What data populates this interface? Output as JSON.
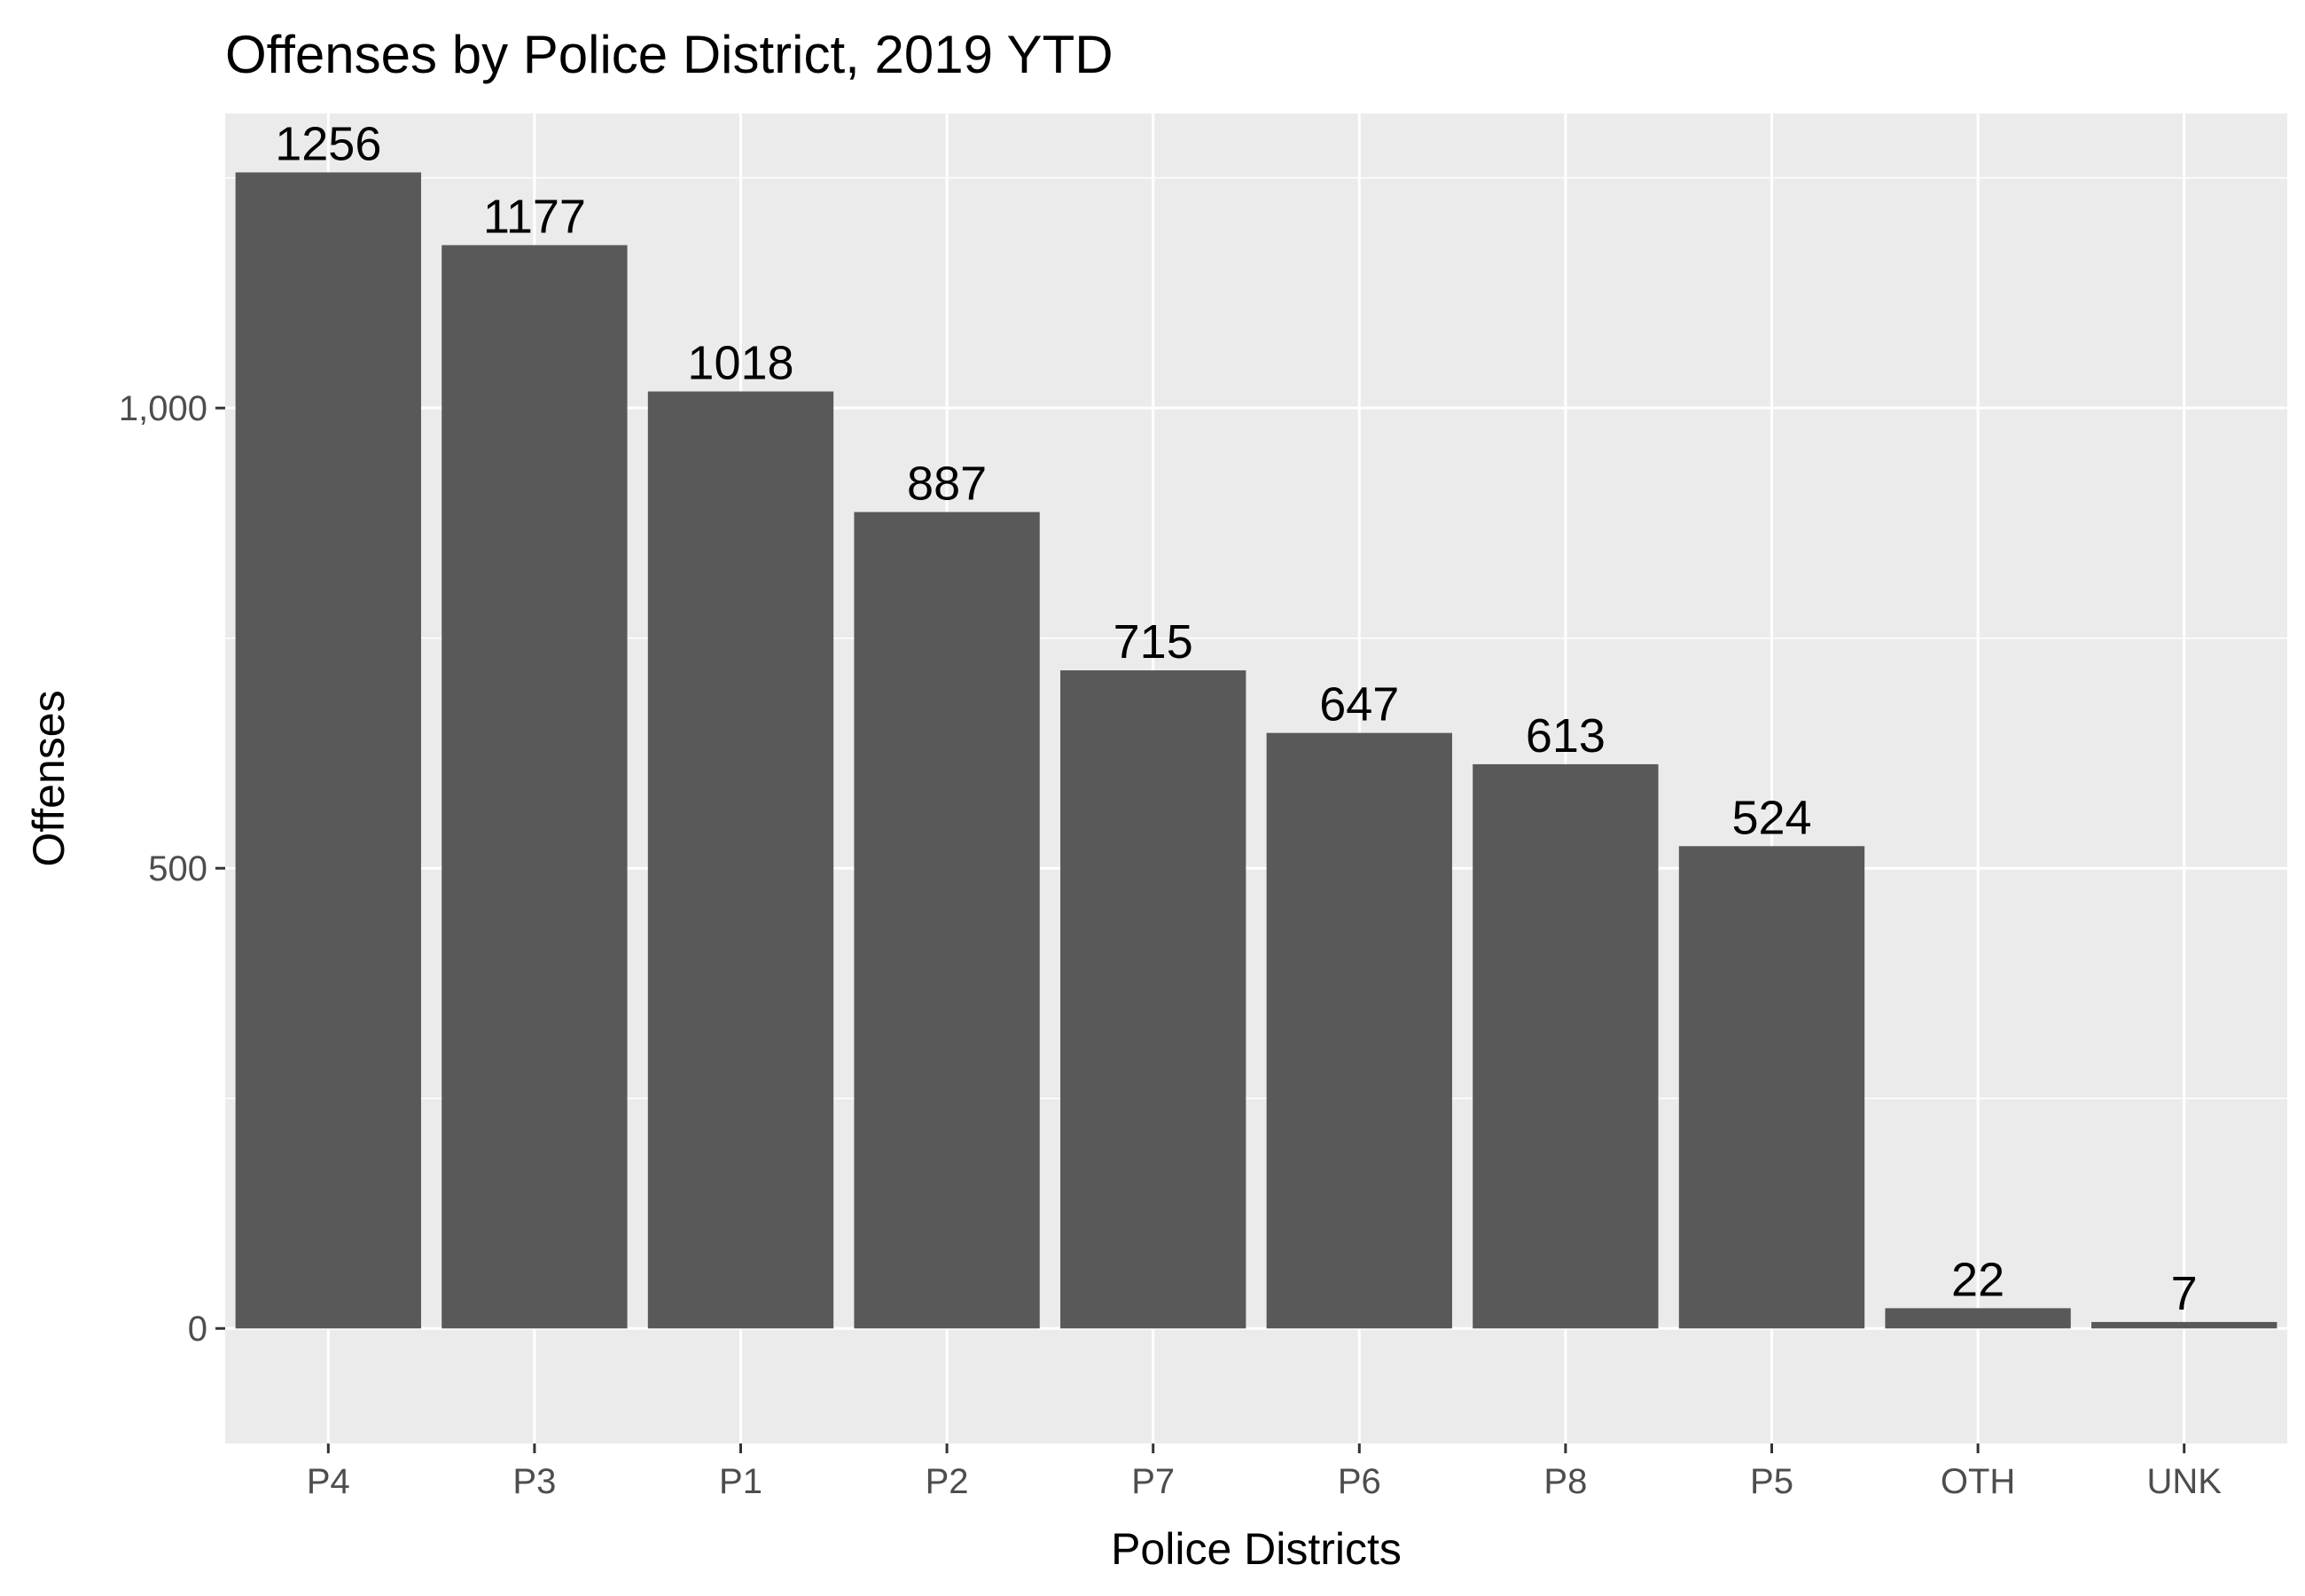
{
  "chart_data": {
    "type": "bar",
    "title": "Offenses by Police District, 2019 YTD",
    "xlabel": "Police Districts",
    "ylabel": "Offenses",
    "categories": [
      "P4",
      "P3",
      "P1",
      "P2",
      "P7",
      "P6",
      "P8",
      "P5",
      "OTH",
      "UNK"
    ],
    "values": [
      1256,
      1177,
      1018,
      887,
      715,
      647,
      613,
      524,
      22,
      7
    ],
    "data_labels": [
      "1256",
      "1177",
      "1018",
      "887",
      "715",
      "647",
      "613",
      "524",
      "22",
      "7"
    ],
    "y_ticks": [
      0,
      500,
      1000
    ],
    "y_tick_labels": [
      "0",
      "500",
      "1,000"
    ],
    "ylim": [
      -125,
      1320
    ],
    "grid": true,
    "legend": "none",
    "colors": {
      "bar": "#595959",
      "panel_background": "#ebebeb",
      "grid": "#ffffff",
      "tick_text": "#4d4d4d",
      "text": "#000000"
    }
  }
}
